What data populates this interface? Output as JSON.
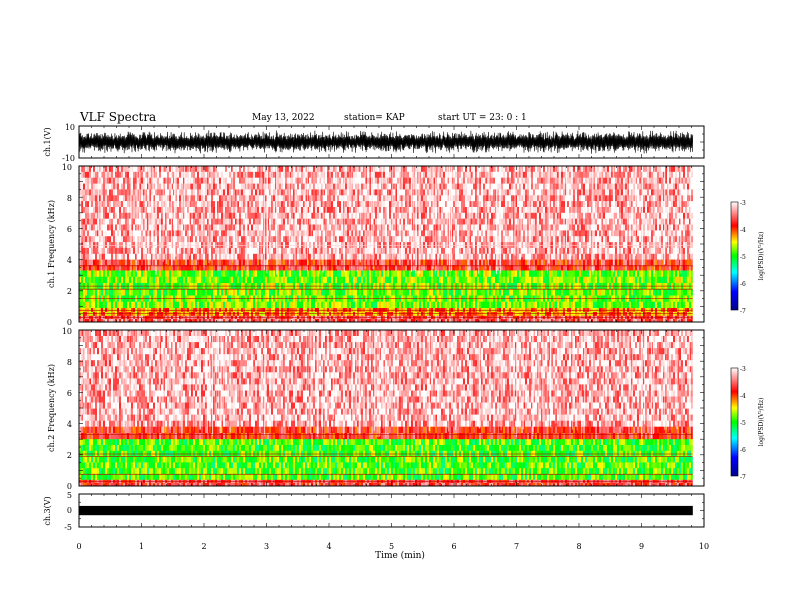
{
  "header": {
    "title": "VLF Spectra",
    "date": "May 13, 2022",
    "station": "station= KAP",
    "start_ut": "start  UT =   23: 0  : 1"
  },
  "chart_data": [
    {
      "type": "line",
      "panel": "ch1-waveform",
      "ylabel": "ch.1(V)",
      "ylim": [
        -10,
        10
      ],
      "yticks": [
        10,
        -10
      ],
      "xlim": [
        0,
        10
      ],
      "x_data_range": [
        0,
        9.82
      ],
      "series_description_values": {
        "typical_min": -8,
        "typical_max": 8,
        "peak_max": 10,
        "peak_min": -10
      }
    },
    {
      "type": "heatmap",
      "panel": "ch1-spectrogram",
      "ylabel": "ch.1  Frequency (kHz)",
      "ylim": [
        0,
        10
      ],
      "yticks": [
        0,
        2,
        4,
        6,
        8,
        10
      ],
      "xlim": [
        0,
        10
      ],
      "x_data_range": [
        0,
        9.82
      ],
      "bands": [
        {
          "f_low": 4.0,
          "f_high": 10.0,
          "level": -3.3
        },
        {
          "f_low": 3.3,
          "f_high": 4.0,
          "level": -3.8
        },
        {
          "f_low": 0.9,
          "f_high": 3.3,
          "level": -4.8
        },
        {
          "f_low": 0.4,
          "f_high": 0.9,
          "level": -4.2
        },
        {
          "f_low": 0.0,
          "f_high": 0.4,
          "level": -3.6
        }
      ],
      "lines_khz": [
        0.3,
        0.55,
        0.75,
        1.5,
        2.1,
        2.3,
        3.6,
        4.9
      ],
      "colorbar": {
        "label": "log(PSD)(V²/Hz)",
        "range": [
          -7,
          -3
        ],
        "ticks": [
          -3,
          -4,
          -5,
          -6,
          -7
        ]
      }
    },
    {
      "type": "heatmap",
      "panel": "ch2-spectrogram",
      "ylabel": "ch.2  Frequency (kHz)",
      "ylim": [
        0,
        10
      ],
      "yticks": [
        0,
        2,
        4,
        6,
        8,
        10
      ],
      "xlim": [
        0,
        10
      ],
      "x_data_range": [
        0,
        9.82
      ],
      "bands": [
        {
          "f_low": 3.8,
          "f_high": 10.0,
          "level": -3.3
        },
        {
          "f_low": 3.0,
          "f_high": 3.8,
          "level": -3.8
        },
        {
          "f_low": 0.4,
          "f_high": 3.0,
          "level": -4.9
        },
        {
          "f_low": 0.0,
          "f_high": 0.4,
          "level": -3.7
        }
      ],
      "lines_khz": [
        0.3,
        0.75,
        1.9,
        2.05,
        3.3
      ],
      "colorbar": {
        "label": "log(PSD)(V²/Hz)",
        "range": [
          -7,
          -3
        ],
        "ticks": [
          -3,
          -4,
          -5,
          -6,
          -7
        ]
      }
    },
    {
      "type": "line",
      "panel": "ch3-waveform",
      "ylabel": "ch.3(V)",
      "ylim": [
        -5,
        5
      ],
      "yticks": [
        5,
        0,
        -5
      ],
      "xlim": [
        0,
        10
      ],
      "x_data_range": [
        0,
        9.82
      ],
      "series_description_values": {
        "level": 0,
        "band_half_width": 0.3
      }
    }
  ],
  "xaxis": {
    "label": "Time (min)",
    "ticks": [
      "0",
      "1",
      "2",
      "3",
      "4",
      "5",
      "6",
      "7",
      "8",
      "9",
      "10"
    ]
  },
  "colors": {
    "colormap": [
      "#00008b",
      "#0000ff",
      "#00ffff",
      "#00ff00",
      "#ffff00",
      "#ff0000",
      "#ffffff"
    ]
  }
}
